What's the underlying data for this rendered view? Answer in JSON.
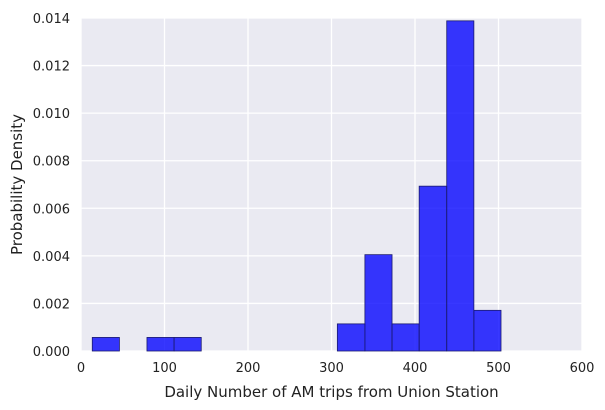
{
  "chart_data": {
    "type": "bar",
    "xlabel": "Daily Number of AM trips from Union Station",
    "ylabel": "Probability Density",
    "xlim": [
      0,
      600
    ],
    "ylim": [
      0,
      0.014
    ],
    "x_ticks": [
      "0",
      "100",
      "200",
      "300",
      "400",
      "500",
      "600"
    ],
    "y_ticks": [
      "0.000",
      "0.002",
      "0.004",
      "0.006",
      "0.008",
      "0.010",
      "0.012",
      "0.014"
    ],
    "grid": true,
    "bins": [
      {
        "x0": 13.5,
        "x1": 46,
        "value": 0.00057
      },
      {
        "x0": 46,
        "x1": 79,
        "value": 0.0
      },
      {
        "x0": 79,
        "x1": 111.5,
        "value": 0.00057
      },
      {
        "x0": 111.5,
        "x1": 144,
        "value": 0.00057
      },
      {
        "x0": 144,
        "x1": 177,
        "value": 0.0
      },
      {
        "x0": 177,
        "x1": 209.5,
        "value": 0.0
      },
      {
        "x0": 209.5,
        "x1": 242,
        "value": 0.0
      },
      {
        "x0": 242,
        "x1": 274.5,
        "value": 0.0
      },
      {
        "x0": 274.5,
        "x1": 307,
        "value": 0.0
      },
      {
        "x0": 307,
        "x1": 340,
        "value": 0.00114
      },
      {
        "x0": 340,
        "x1": 372.5,
        "value": 0.00405
      },
      {
        "x0": 372.5,
        "x1": 405,
        "value": 0.00114
      },
      {
        "x0": 405,
        "x1": 438,
        "value": 0.00693
      },
      {
        "x0": 438,
        "x1": 470.5,
        "value": 0.01388
      },
      {
        "x0": 470.5,
        "x1": 503,
        "value": 0.00171
      }
    ],
    "colors": {
      "bar_fill": "#0000ff",
      "bar_stroke": "#1a1a6e",
      "plot_background": "#eaeaf2",
      "grid": "#ffffff"
    }
  }
}
